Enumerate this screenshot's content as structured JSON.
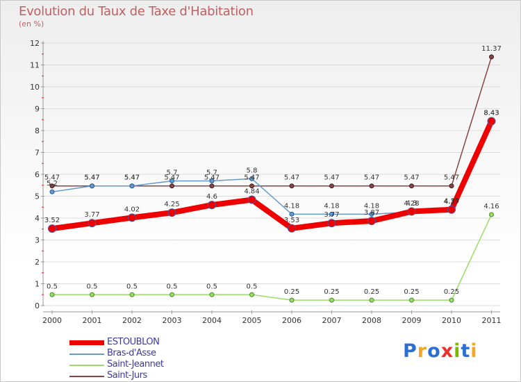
{
  "title": "Evolution du Taux de Taxe d'Habitation",
  "subtitle": "(en %)",
  "chart_data": {
    "type": "line",
    "title": "Evolution du Taux de Taxe d'Habitation",
    "ylabel": "(en %)",
    "xlabel": "",
    "ylim": [
      0,
      12
    ],
    "yticks": [
      "0",
      "1",
      "2",
      "3",
      "4",
      "5",
      "6",
      "7",
      "8",
      "9",
      "10",
      "11",
      "12"
    ],
    "x": [
      "2000",
      "2001",
      "2002",
      "2003",
      "2004",
      "2005",
      "2006",
      "2007",
      "2008",
      "2009",
      "2010",
      "2011"
    ],
    "series": [
      {
        "name": "ESTOUBLON",
        "color": "#ee0000",
        "values": [
          3.52,
          3.77,
          4.02,
          4.25,
          4.6,
          4.84,
          3.53,
          3.77,
          3.87,
          4.3,
          4.39,
          8.43
        ],
        "labels": [
          "3.52",
          "3.77",
          "4.02",
          "4.25",
          "4.6",
          "4.84",
          "3.53",
          "3.77",
          "3.87",
          "4.3",
          "4.39",
          "8.43"
        ]
      },
      {
        "name": "Bras-d'Asse",
        "color": "#6699cc",
        "values": [
          5.2,
          5.47,
          5.47,
          5.7,
          5.7,
          5.8,
          4.18,
          4.18,
          4.18,
          4.28,
          4.37,
          8.43
        ],
        "labels": [
          "5.2",
          "5.47",
          "5.47",
          "5.7",
          "5.7",
          "5.8",
          "4.18",
          "4.18",
          "4.18",
          "4.28",
          "4.37",
          "8.43"
        ]
      },
      {
        "name": "Saint-Jeannet",
        "color": "#99dd66",
        "values": [
          0.5,
          0.5,
          0.5,
          0.5,
          0.5,
          0.5,
          0.25,
          0.25,
          0.25,
          0.25,
          0.25,
          4.16
        ],
        "labels": [
          "0.5",
          "0.5",
          "0.5",
          "0.5",
          "0.5",
          "0.5",
          "0.25",
          "0.25",
          "0.25",
          "0.25",
          "0.25",
          "4.16"
        ]
      },
      {
        "name": "Saint-Jurs",
        "color": "#884444",
        "values": [
          5.47,
          5.47,
          5.47,
          5.47,
          5.47,
          5.47,
          5.47,
          5.47,
          5.47,
          5.47,
          5.47,
          11.37
        ],
        "labels": [
          "5.47",
          "5.47",
          "5.47",
          "5.47",
          "5.47",
          "5.47",
          "5.47",
          "5.47",
          "5.47",
          "5.47",
          "5.47",
          "11.37"
        ]
      }
    ]
  },
  "logo": {
    "letters": [
      "P",
      "r",
      "o",
      "x",
      "i",
      "t",
      "i"
    ],
    "colors": [
      "#2b6fd6",
      "#f5a623",
      "#2b6fd6",
      "#e8322c",
      "#7ab800",
      "#2b6fd6",
      "#f5a623"
    ]
  }
}
